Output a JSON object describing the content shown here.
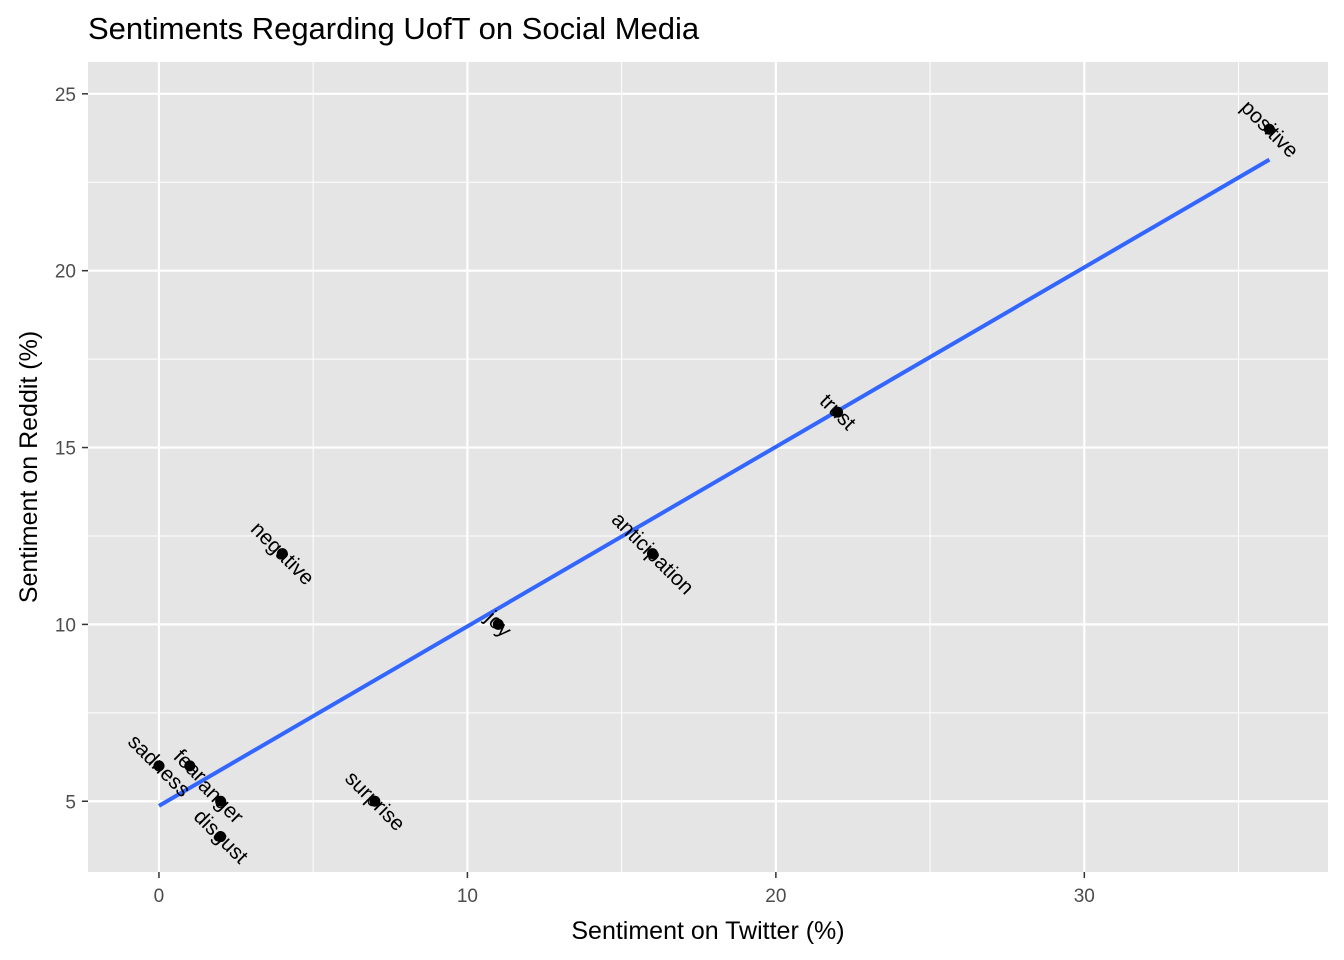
{
  "chart_data": {
    "type": "scatter",
    "title": "Sentiments Regarding UofT on Social Media",
    "xlabel": "Sentiment on Twitter (%)",
    "ylabel": "Sentiment on Reddit (%)",
    "xlim": [
      -2.3,
      37.9
    ],
    "ylim": [
      3.0,
      25.9
    ],
    "x_ticks": [
      0,
      10,
      20,
      30
    ],
    "y_ticks": [
      5,
      10,
      15,
      20,
      25
    ],
    "x_tick_labels": [
      "0",
      "10",
      "20",
      "30"
    ],
    "y_tick_labels": [
      "5",
      "10",
      "15",
      "20",
      "25"
    ],
    "grid": true,
    "points": [
      {
        "label": "positive",
        "x": 36,
        "y": 24
      },
      {
        "label": "trust",
        "x": 22,
        "y": 16
      },
      {
        "label": "anticipation",
        "x": 16,
        "y": 12
      },
      {
        "label": "negative",
        "x": 4,
        "y": 12
      },
      {
        "label": "joy",
        "x": 11,
        "y": 10
      },
      {
        "label": "fear",
        "x": 1,
        "y": 6
      },
      {
        "label": "sadness",
        "x": 0,
        "y": 6
      },
      {
        "label": "anger",
        "x": 2,
        "y": 5
      },
      {
        "label": "disgust",
        "x": 2,
        "y": 4
      },
      {
        "label": "surprise",
        "x": 7,
        "y": 5
      }
    ],
    "trend_line": {
      "x": [
        0,
        36
      ],
      "y": [
        4.87,
        23.14
      ]
    },
    "colors": {
      "panel_background": "#e5e5e5",
      "grid": "#ffffff",
      "point": "#000000",
      "trend_line": "#3366ff"
    }
  }
}
